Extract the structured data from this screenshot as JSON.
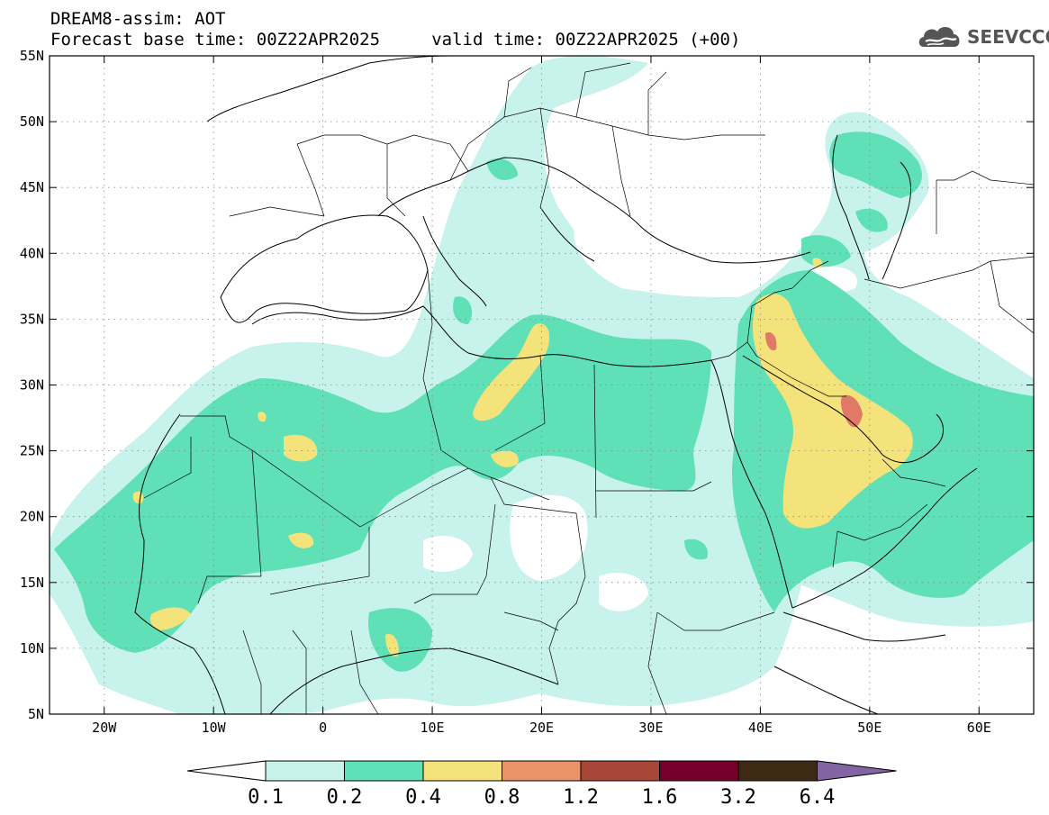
{
  "header": {
    "line1": "DREAM8-assim: AOT",
    "line2": "Forecast base time: 00Z22APR2025     valid time: 00Z22APR2025 (+00)"
  },
  "logo": {
    "text": "SEEVCCC",
    "icon": "cloud-logo-icon"
  },
  "map": {
    "lon_range": [
      -25,
      65
    ],
    "lat_range": [
      5,
      55
    ],
    "lon_ticks": [
      {
        "value": -20,
        "label": "20W"
      },
      {
        "value": -10,
        "label": "10W"
      },
      {
        "value": 0,
        "label": "0"
      },
      {
        "value": 10,
        "label": "10E"
      },
      {
        "value": 20,
        "label": "20E"
      },
      {
        "value": 30,
        "label": "30E"
      },
      {
        "value": 40,
        "label": "40E"
      },
      {
        "value": 50,
        "label": "50E"
      },
      {
        "value": 60,
        "label": "60E"
      }
    ],
    "lat_ticks": [
      {
        "value": 55,
        "label": "55N"
      },
      {
        "value": 50,
        "label": "50N"
      },
      {
        "value": 45,
        "label": "45N"
      },
      {
        "value": 40,
        "label": "40N"
      },
      {
        "value": 35,
        "label": "35N"
      },
      {
        "value": 30,
        "label": "30N"
      },
      {
        "value": 25,
        "label": "25N"
      },
      {
        "value": 20,
        "label": "20N"
      },
      {
        "value": 15,
        "label": "15N"
      },
      {
        "value": 10,
        "label": "10N"
      },
      {
        "value": 5,
        "label": "5N"
      }
    ],
    "gridlines": true,
    "field": "AOT"
  },
  "colorbar": {
    "labels": [
      "0.1",
      "0.2",
      "0.4",
      "0.8",
      "1.2",
      "1.6",
      "3.2",
      "6.4"
    ],
    "colors": [
      "#c8f2ec",
      "#5fe0b6",
      "#f4e27a",
      "#ea9368",
      "#a8463a",
      "#75002a",
      "#3d2914",
      "#8264a2"
    ],
    "under_color": "#ffffff",
    "over_color": "#8264a2"
  }
}
